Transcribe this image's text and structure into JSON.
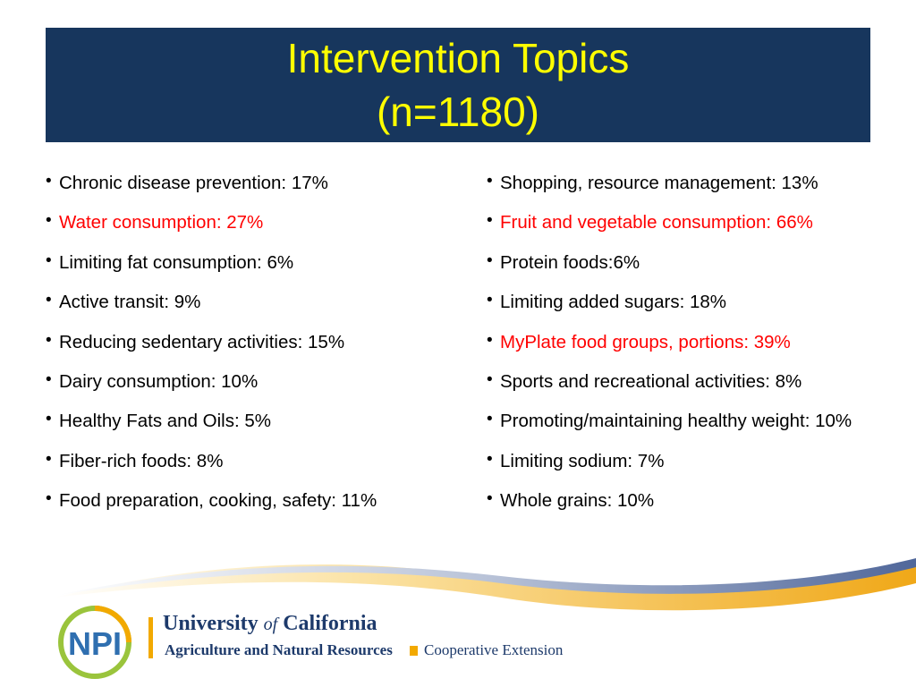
{
  "title": {
    "line1": "Intervention Topics",
    "line2": "(n=1180)"
  },
  "left_items": [
    {
      "label": "Chronic disease prevention: 17%",
      "highlight": false
    },
    {
      "label": "Water consumption: 27%",
      "highlight": true
    },
    {
      "label": "Limiting fat consumption: 6%",
      "highlight": false
    },
    {
      "label": "Active transit: 9%",
      "highlight": false
    },
    {
      "label": "Reducing sedentary activities: 15%",
      "highlight": false
    },
    {
      "label": "Dairy consumption: 10%",
      "highlight": false
    },
    {
      "label": "Healthy Fats and Oils: 5%",
      "highlight": false
    },
    {
      "label": "Fiber-rich foods: 8%",
      "highlight": false
    },
    {
      "label": "Food preparation, cooking, safety: 11%",
      "highlight": false
    }
  ],
  "right_items": [
    {
      "label": "Shopping, resource management: 13%",
      "highlight": false
    },
    {
      "label": "Fruit and vegetable consumption: 66%",
      "highlight": true
    },
    {
      "label": "Protein foods:6%",
      "highlight": false
    },
    {
      "label": "Limiting added sugars: 18%",
      "highlight": false
    },
    {
      "label": "MyPlate food groups, portions: 39%",
      "highlight": true
    },
    {
      "label": "Sports and recreational activities: 8%",
      "highlight": false
    },
    {
      "label": "Promoting/maintaining healthy weight: 10%",
      "highlight": false
    },
    {
      "label": "Limiting sodium: 7%",
      "highlight": false
    },
    {
      "label": "Whole grains: 10%",
      "highlight": false
    }
  ],
  "footer": {
    "logo_text": "NPI",
    "university_name_part1": "University",
    "university_name_of": "of",
    "university_name_part2": "California",
    "department": "Agriculture and Natural Resources",
    "extension": "Cooperative Extension"
  },
  "colors": {
    "title_bg": "#17365d",
    "title_text": "#ffff00",
    "highlight": "#ff0000",
    "brand_blue": "#1d3a6b",
    "brand_gold": "#f2a900"
  }
}
